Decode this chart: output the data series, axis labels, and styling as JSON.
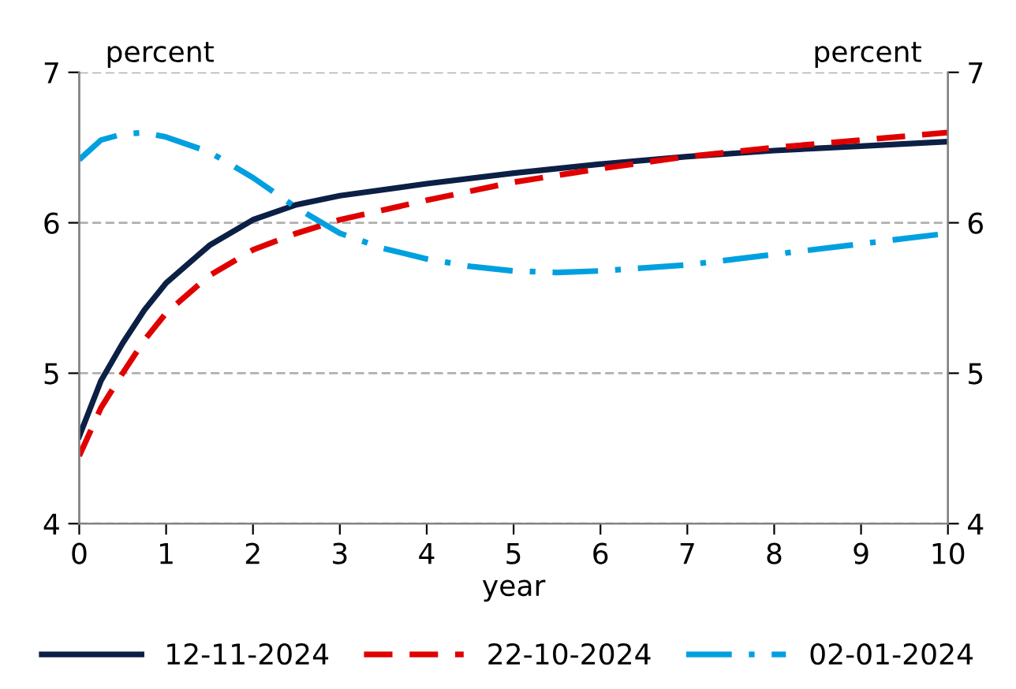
{
  "chart_data": {
    "type": "line",
    "ylabel": "percent",
    "y2label": "percent",
    "xlabel": "year",
    "xlim": [
      0,
      10
    ],
    "xticks": [
      0,
      1,
      2,
      3,
      4,
      5,
      6,
      7,
      8,
      9,
      10
    ],
    "ylim": [
      4,
      7
    ],
    "yticks": [
      4,
      5,
      6,
      7
    ],
    "y2lim": [
      4,
      7
    ],
    "y2ticks": [
      4,
      5,
      6,
      7
    ],
    "grid": "y",
    "legend": "bottom",
    "series": [
      {
        "name": "12-11-2024",
        "color": "#0c1f45",
        "line_style": "solid",
        "x": [
          0,
          0.25,
          0.5,
          0.75,
          1,
          1.5,
          2,
          2.5,
          3,
          4,
          5,
          6,
          7,
          8,
          9,
          10
        ],
        "values": [
          4.58,
          4.95,
          5.2,
          5.42,
          5.6,
          5.85,
          6.02,
          6.12,
          6.18,
          6.26,
          6.33,
          6.39,
          6.44,
          6.48,
          6.51,
          6.54
        ]
      },
      {
        "name": "22-10-2024",
        "color": "#e00000",
        "line_style": "dashed",
        "x": [
          0,
          0.25,
          0.5,
          0.75,
          1,
          1.5,
          2,
          2.5,
          3,
          4,
          5,
          6,
          7,
          8,
          9,
          10
        ],
        "values": [
          4.45,
          4.77,
          5.0,
          5.22,
          5.4,
          5.65,
          5.82,
          5.93,
          6.02,
          6.15,
          6.27,
          6.36,
          6.44,
          6.5,
          6.55,
          6.6
        ]
      },
      {
        "name": "02-01-2024",
        "color": "#00a0e0",
        "line_style": "dashdot",
        "x": [
          0,
          0.25,
          0.5,
          0.75,
          1,
          1.5,
          2,
          2.5,
          3,
          3.5,
          4,
          4.5,
          5,
          5.5,
          6,
          7,
          8,
          9,
          10
        ],
        "values": [
          6.42,
          6.55,
          6.59,
          6.6,
          6.57,
          6.47,
          6.3,
          6.1,
          5.93,
          5.83,
          5.76,
          5.71,
          5.68,
          5.67,
          5.68,
          5.72,
          5.79,
          5.86,
          5.93
        ]
      }
    ]
  }
}
